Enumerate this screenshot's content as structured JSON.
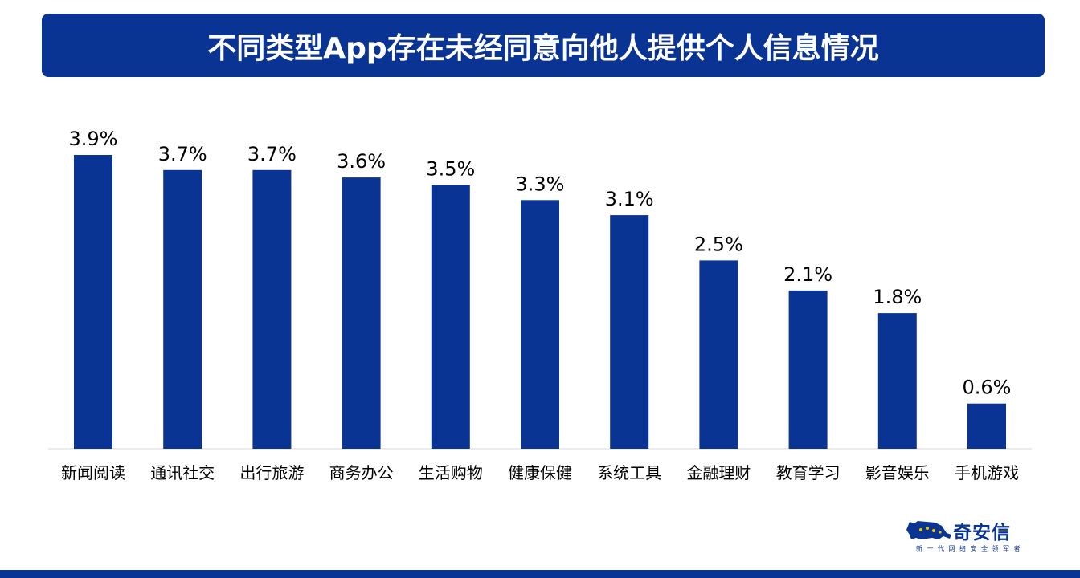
{
  "title": "不同类型App存在未经同意向他人提供个人信息情况",
  "colors": {
    "bar": "#0a3494",
    "banner": "#0a3494",
    "axis": "#d9d9d9",
    "text": "#000000"
  },
  "chart_data": {
    "type": "bar",
    "title": "不同类型App存在未经同意向他人提供个人信息情况",
    "categories": [
      "新闻阅读",
      "通讯社交",
      "出行旅游",
      "商务办公",
      "生活购物",
      "健康保健",
      "系统工具",
      "金融理财",
      "教育学习",
      "影音娱乐",
      "手机游戏"
    ],
    "values": [
      3.9,
      3.7,
      3.7,
      3.6,
      3.5,
      3.3,
      3.1,
      2.5,
      2.1,
      1.8,
      0.6
    ],
    "labels": [
      "3.9%",
      "3.7%",
      "3.7%",
      "3.6%",
      "3.5%",
      "3.3%",
      "3.1%",
      "2.5%",
      "2.1%",
      "1.8%",
      "0.6%"
    ],
    "xlabel": "",
    "ylabel": "",
    "ylim": [
      0,
      4.0
    ],
    "grid": false,
    "legend": "none"
  },
  "logo": {
    "name": "奇安信",
    "slogan": "新一代网络安全领军者"
  }
}
